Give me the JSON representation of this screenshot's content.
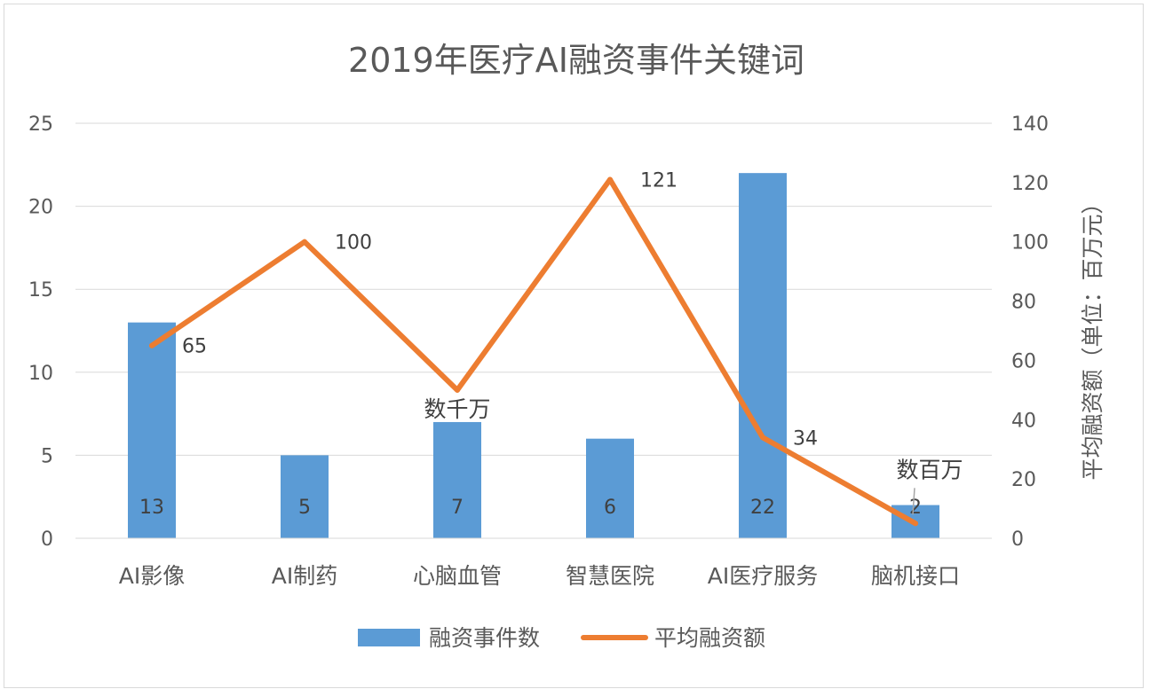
{
  "chart_data": {
    "type": "bar",
    "title": "2019年医疗AI融资事件关键词",
    "categories": [
      "AI影像",
      "AI制药",
      "心脑血管",
      "智慧医院",
      "AI医疗服务",
      "脑机接口"
    ],
    "series": [
      {
        "name": "融资事件数",
        "type": "bar",
        "axis": "left",
        "color": "#5b9bd5",
        "values": [
          13,
          5,
          7,
          6,
          22,
          2
        ],
        "labels": [
          "13",
          "5",
          "7",
          "6",
          "22",
          "2"
        ]
      },
      {
        "name": "平均融资额",
        "type": "line",
        "axis": "right",
        "color": "#ed7d31",
        "values": [
          65,
          100,
          50,
          121,
          34,
          5
        ],
        "labels": [
          "65",
          "100",
          "数千万",
          "121",
          "34",
          "数百万"
        ]
      }
    ],
    "y_left": {
      "min": 0,
      "max": 25,
      "ticks": [
        0,
        5,
        10,
        15,
        20,
        25
      ],
      "label": ""
    },
    "y_right": {
      "min": 0,
      "max": 140,
      "ticks": [
        0,
        20,
        40,
        60,
        80,
        100,
        120,
        140
      ],
      "label": "平均融资额（单位：百万元）"
    },
    "grid": true,
    "legend": "bottom"
  }
}
